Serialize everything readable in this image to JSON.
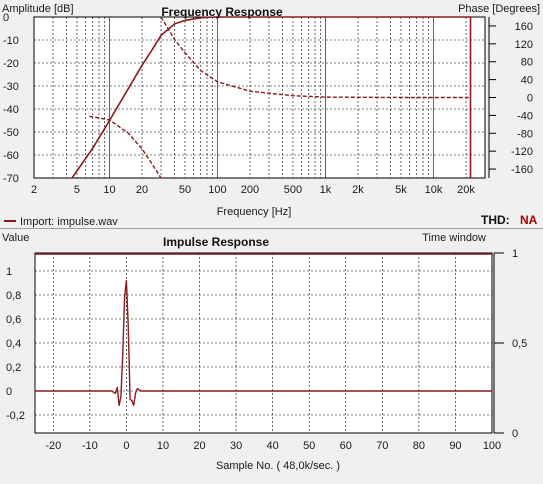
{
  "colors": {
    "background": "#f0f0f0",
    "plot": "#ffffff",
    "trace": "#8b1a1a",
    "grid": "#000000",
    "thd_value": "#b00000"
  },
  "freq_panel": {
    "title": "Frequency Response",
    "left_axis_label": "Amplitude [dB]",
    "right_axis_label": "Phase [Degrees]",
    "x_label": "Frequency [Hz]",
    "legend_text": "Import: impulse.wav",
    "thd_label": "THD:",
    "thd_value": "NA"
  },
  "impulse_panel": {
    "title": "Impulse Response",
    "left_axis_label": "Value",
    "right_axis_label": "Time window",
    "x_label": "Sample No. ( 48,0k/sec. )"
  },
  "chart_data": [
    {
      "type": "line",
      "title": "Frequency Response",
      "xlabel": "Frequency [Hz]",
      "ylabel": "Amplitude [dB]",
      "y2label": "Phase [Degrees]",
      "xscale": "log",
      "xlim": [
        2,
        30000
      ],
      "ylim": [
        -70,
        0
      ],
      "y2lim": [
        -180,
        180
      ],
      "x_ticks": [
        "2",
        "5",
        "10",
        "20",
        "50",
        "100",
        "200",
        "500",
        "1k",
        "2k",
        "5k",
        "10k",
        "20k"
      ],
      "y_ticks": [
        "0",
        "-10",
        "-20",
        "-30",
        "-40",
        "-50",
        "-60",
        "-70"
      ],
      "y2_ticks": [
        "160",
        "120",
        "80",
        "40",
        "0",
        "-40",
        "-80",
        "-120",
        "-160"
      ],
      "grid": true,
      "series": [
        {
          "name": "Import: impulse.wav",
          "axis": "amplitude",
          "style": "solid",
          "x": [
            4.5,
            7,
            10,
            15,
            20,
            25,
            30,
            40,
            50,
            70,
            100,
            1000,
            10000,
            20000
          ],
          "y": [
            -70,
            -57,
            -45,
            -31,
            -21,
            -14,
            -8,
            -3,
            -1.5,
            -0.3,
            0,
            0,
            0,
            0
          ]
        },
        {
          "name": "Import: impulse.wav",
          "axis": "phase",
          "style": "dashed",
          "segments": [
            {
              "x": [
                6.5,
                10,
                15,
                20,
                25,
                30
              ],
              "y": [
                -42,
                -50,
                -80,
                -115,
                -150,
                -180
              ]
            },
            {
              "x": [
                30,
                40,
                50,
                70,
                100,
                200,
                500,
                1000,
                5000,
                10000,
                22000
              ],
              "y": [
                180,
                130,
                100,
                60,
                35,
                14,
                4,
                1,
                0,
                0,
                0
              ]
            }
          ]
        }
      ]
    },
    {
      "type": "line",
      "title": "Impulse Response",
      "xlabel": "Sample No. ( 48,0k/sec. )",
      "ylabel": "Value",
      "y2label": "Time window",
      "xlim": [
        -25,
        100
      ],
      "ylim": [
        -0.35,
        1.15
      ],
      "y2lim": [
        0,
        1
      ],
      "x_ticks": [
        "-20",
        "-10",
        "0",
        "10",
        "20",
        "30",
        "40",
        "50",
        "60",
        "70",
        "80",
        "90",
        "100"
      ],
      "y_ticks": [
        "1",
        "0,8",
        "0,6",
        "0,4",
        "0,2",
        "0",
        "-0,2"
      ],
      "y2_ticks": [
        "1",
        "0,5",
        "0"
      ],
      "grid": true,
      "series": [
        {
          "name": "Impulse Response",
          "x": [
            -25,
            -4,
            -3,
            -2.5,
            -2,
            -1.5,
            -1,
            -0.5,
            0,
            0.5,
            1,
            1.5,
            2,
            2.5,
            3,
            4,
            100
          ],
          "y": [
            0,
            0,
            -0.02,
            0.03,
            -0.12,
            -0.05,
            0.3,
            0.78,
            0.92,
            0.55,
            -0.07,
            -0.08,
            -0.12,
            -0.02,
            0.02,
            0,
            0
          ]
        }
      ],
      "time_window": {
        "level": 1,
        "from": -25,
        "to": 100
      }
    }
  ]
}
